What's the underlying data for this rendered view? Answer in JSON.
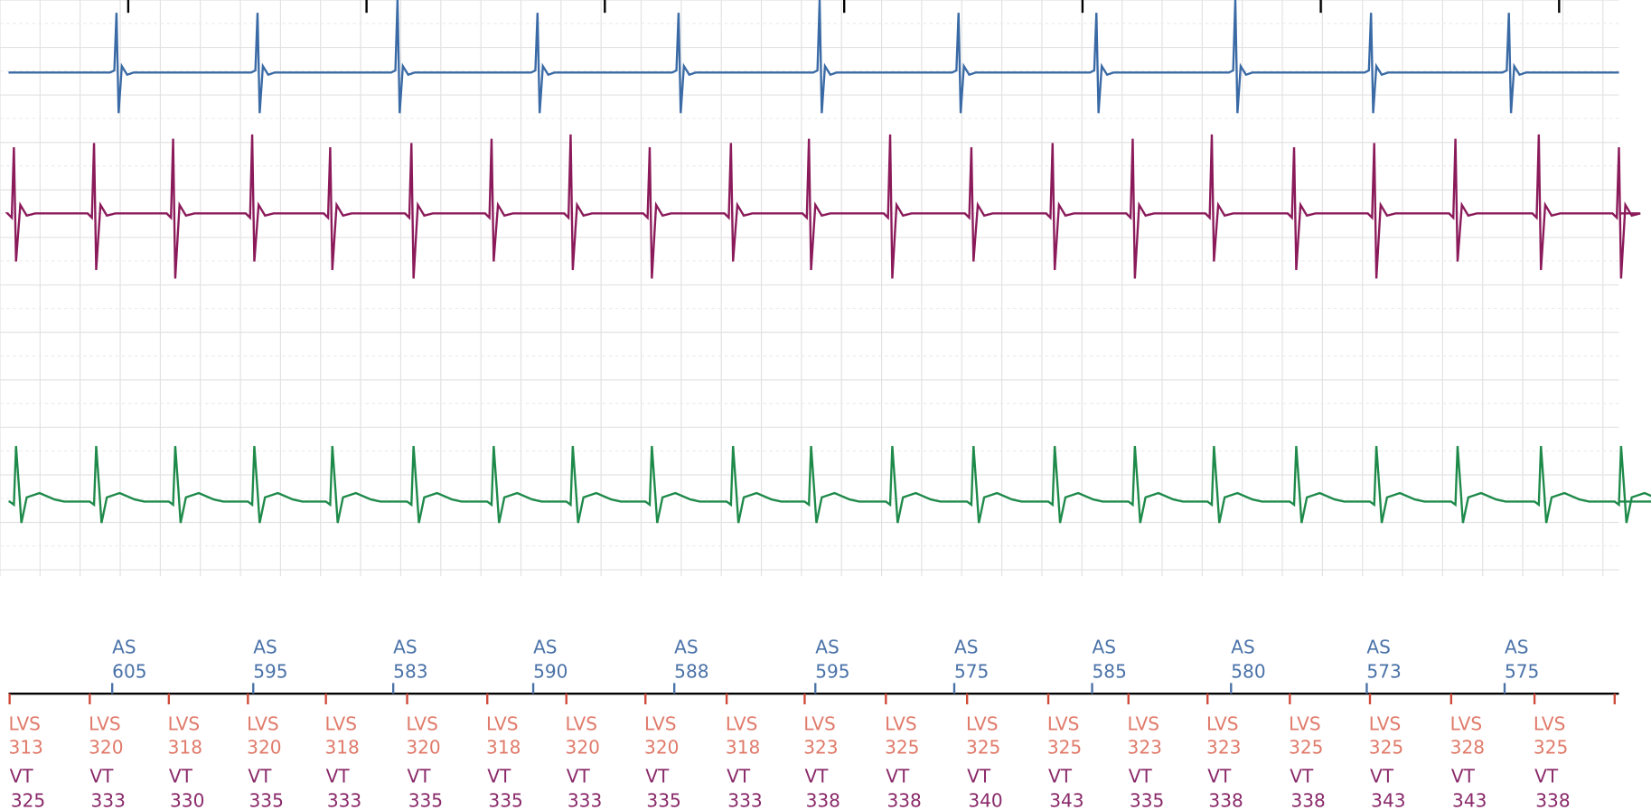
{
  "atrial": [
    {
      "label": "AS",
      "interval": 605
    },
    {
      "label": "AS",
      "interval": 595
    },
    {
      "label": "AS",
      "interval": 583
    },
    {
      "label": "AS",
      "interval": 590
    },
    {
      "label": "AS",
      "interval": 588
    },
    {
      "label": "AS",
      "interval": 595
    },
    {
      "label": "AS",
      "interval": 575
    },
    {
      "label": "AS",
      "interval": 585
    },
    {
      "label": "AS",
      "interval": 580
    },
    {
      "label": "AS",
      "interval": 573
    },
    {
      "label": "AS",
      "interval": 575
    }
  ],
  "lv": [
    {
      "label": "LVS",
      "interval": 313
    },
    {
      "label": "LVS",
      "interval": 320
    },
    {
      "label": "LVS",
      "interval": 318
    },
    {
      "label": "LVS",
      "interval": 320
    },
    {
      "label": "LVS",
      "interval": 318
    },
    {
      "label": "LVS",
      "interval": 320
    },
    {
      "label": "LVS",
      "interval": 318
    },
    {
      "label": "LVS",
      "interval": 320
    },
    {
      "label": "LVS",
      "interval": 320
    },
    {
      "label": "LVS",
      "interval": 318
    },
    {
      "label": "LVS",
      "interval": 323
    },
    {
      "label": "LVS",
      "interval": 325
    },
    {
      "label": "LVS",
      "interval": 325
    },
    {
      "label": "LVS",
      "interval": 325
    },
    {
      "label": "LVS",
      "interval": 323
    },
    {
      "label": "LVS",
      "interval": 323
    },
    {
      "label": "LVS",
      "interval": 325
    },
    {
      "label": "LVS",
      "interval": 325
    },
    {
      "label": "LVS",
      "interval": 328
    },
    {
      "label": "LVS",
      "interval": 325
    }
  ],
  "ventricular": [
    {
      "label": "VT",
      "interval": 325
    },
    {
      "label": "VT",
      "interval": 333
    },
    {
      "label": "VT",
      "interval": 330
    },
    {
      "label": "VT",
      "interval": 335
    },
    {
      "label": "VT",
      "interval": 333
    },
    {
      "label": "VT",
      "interval": 335
    },
    {
      "label": "VT",
      "interval": 335
    },
    {
      "label": "VT",
      "interval": 333
    },
    {
      "label": "VT",
      "interval": 335
    },
    {
      "label": "VT",
      "interval": 333
    },
    {
      "label": "VT",
      "interval": 338
    },
    {
      "label": "VT",
      "interval": 338
    },
    {
      "label": "VT",
      "interval": 340
    },
    {
      "label": "VT",
      "interval": 343
    },
    {
      "label": "VT",
      "interval": 335
    },
    {
      "label": "VT",
      "interval": 338
    },
    {
      "label": "VT",
      "interval": 338
    },
    {
      "label": "VT",
      "interval": 343
    },
    {
      "label": "VT",
      "interval": 343
    },
    {
      "label": "VT",
      "interval": 338
    }
  ]
}
